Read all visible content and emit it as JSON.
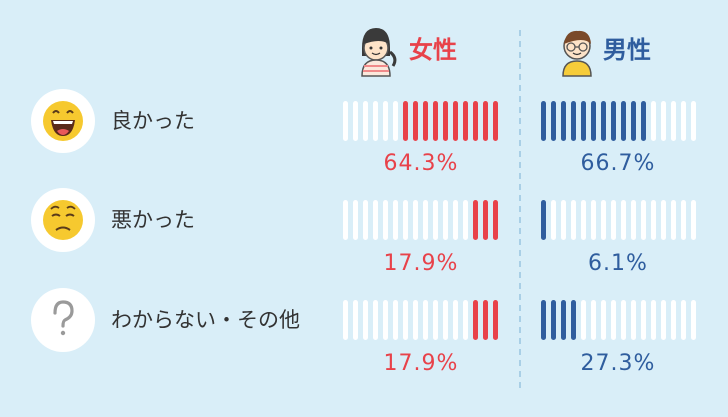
{
  "colors": {
    "female": "#e8424a",
    "male": "#2f5d9e",
    "empty": "#ffffff",
    "background": "#d9eef8",
    "divider": "#a9cfe6"
  },
  "header": {
    "female_label": "女性",
    "male_label": "男性"
  },
  "chart_data": {
    "type": "bar",
    "categories": [
      "良かった",
      "悪かった",
      "わからない・その他"
    ],
    "category_icons": [
      "grinning-face-icon",
      "worried-face-icon",
      "question-mark-icon"
    ],
    "series": [
      {
        "name": "女性",
        "values": [
          64.3,
          17.9,
          17.9
        ],
        "value_labels": [
          "64.3%",
          "17.9%",
          "17.9%"
        ]
      },
      {
        "name": "男性",
        "values": [
          66.7,
          6.1,
          27.3
        ],
        "value_labels": [
          "66.7%",
          "6.1%",
          "27.3%"
        ]
      }
    ],
    "bar_segments": 16,
    "ylim": [
      0,
      100
    ]
  }
}
